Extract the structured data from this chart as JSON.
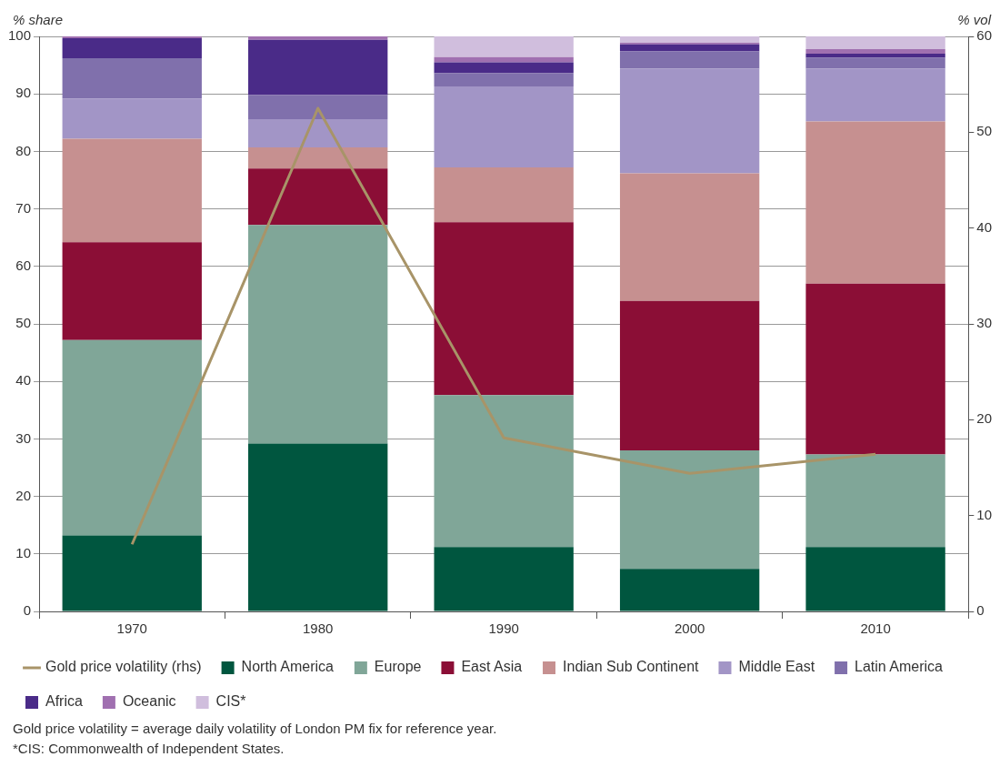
{
  "chart_data": {
    "type": "bar",
    "stacked": true,
    "ylabel": "% share",
    "y2label": "% vol",
    "categories": [
      "1970",
      "1980",
      "1990",
      "2000",
      "2010"
    ],
    "ylim": [
      0,
      100
    ],
    "yticks": [
      0,
      10,
      20,
      30,
      40,
      50,
      60,
      70,
      80,
      90,
      100
    ],
    "y2lim": [
      0,
      60
    ],
    "y2ticks": [
      0,
      10,
      20,
      30,
      40,
      50,
      60
    ],
    "grid": "y",
    "legend": "bottom",
    "marker": "none",
    "line_style": "solid",
    "series": [
      {
        "name": "North America",
        "color": "#00563f",
        "values": [
          13.2,
          29.2,
          11.2,
          7.4,
          11.2
        ]
      },
      {
        "name": "Europe",
        "color": "#80a698",
        "values": [
          34,
          38,
          26.4,
          20.6,
          16.1
        ]
      },
      {
        "name": "East Asia",
        "color": "#8b0e36",
        "values": [
          17,
          9.8,
          30.1,
          26,
          29.7
        ]
      },
      {
        "name": "Indian Sub Continent",
        "color": "#c69090",
        "values": [
          18,
          3.7,
          9.5,
          22.2,
          28.2
        ]
      },
      {
        "name": "Middle East",
        "color": "#a295c6",
        "values": [
          7,
          4.9,
          14.1,
          18.2,
          9.2
        ]
      },
      {
        "name": "Latin America",
        "color": "#8070ac",
        "values": [
          7,
          4.2,
          2.3,
          3,
          1.9
        ]
      },
      {
        "name": "Africa",
        "color": "#4a2b88",
        "values": [
          3.5,
          9.6,
          1.9,
          1.2,
          0.7
        ]
      },
      {
        "name": "Oceanic",
        "color": "#a070b0",
        "values": [
          0.3,
          0.6,
          0.9,
          0.3,
          0.8
        ]
      },
      {
        "name": "CIS*",
        "color": "#d0bedd",
        "values": [
          0,
          0,
          3.6,
          1.1,
          2.2
        ]
      },
      {
        "name": "Gold price volatility (rhs)",
        "type": "line",
        "axis": "y2",
        "color": "#a89468",
        "values": [
          7,
          52.5,
          18.1,
          14.4,
          16.4
        ]
      }
    ],
    "annotations": [
      "Gold price volatility = average daily volatility of London PM fix for reference year.",
      "*CIS: Commonwealth of Independent States."
    ]
  }
}
